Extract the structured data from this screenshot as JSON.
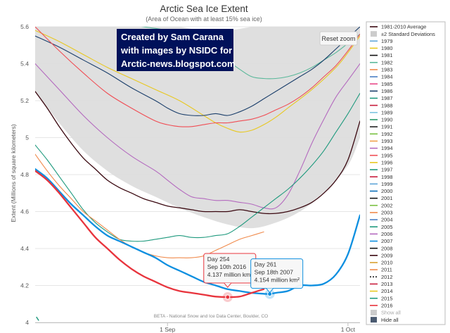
{
  "chart_data": {
    "type": "line",
    "title": "Arctic Sea Ice Extent",
    "subtitle": "(Area of Ocean with at least 15% sea ice)",
    "ylabel": "Extent (Millions of square kilometers)",
    "xlabel": "",
    "xlim": [
      222,
      276
    ],
    "ylim": [
      4.0,
      5.6
    ],
    "y_ticks": [
      4,
      4.2,
      4.4,
      4.6,
      4.8,
      5,
      5.2,
      5.4,
      5.6
    ],
    "x_ticks": [
      {
        "day": 244,
        "label": "1 Sep"
      },
      {
        "day": 274,
        "label": "1 Oct"
      }
    ],
    "grid": true,
    "band": {
      "name": "±2 Standard Deviations",
      "x": [
        222,
        226,
        230,
        234,
        238,
        242,
        246,
        250,
        254,
        258,
        262,
        266,
        270,
        274,
        276
      ],
      "upper": [
        5.72,
        5.7,
        5.68,
        5.66,
        5.64,
        5.62,
        5.6,
        5.58,
        5.58,
        5.6,
        5.62,
        5.64,
        5.66,
        5.68,
        5.7
      ],
      "lower": [
        5.25,
        5.08,
        4.93,
        4.82,
        4.74,
        4.68,
        4.62,
        4.57,
        4.53,
        4.51,
        4.54,
        4.6,
        4.7,
        4.85,
        5.0
      ]
    },
    "series": [
      {
        "name": "1981-2010 Average",
        "color": "#3a0810",
        "width": 1.3,
        "x": [
          222,
          224,
          226,
          228,
          230,
          232,
          234,
          236,
          238,
          240,
          242,
          244,
          246,
          248,
          250,
          252,
          254,
          256,
          258,
          260,
          262,
          264,
          266,
          268,
          270,
          272,
          274,
          276
        ],
        "y": [
          5.25,
          5.16,
          5.06,
          4.97,
          4.89,
          4.83,
          4.77,
          4.73,
          4.7,
          4.67,
          4.65,
          4.63,
          4.62,
          4.61,
          4.6,
          4.6,
          4.6,
          4.61,
          4.6,
          4.59,
          4.59,
          4.6,
          4.62,
          4.65,
          4.7,
          4.77,
          4.88,
          5.09
        ]
      },
      {
        "name": "1980",
        "color": "#e8c820",
        "width": 1.1,
        "x": [
          222,
          226,
          230,
          234,
          238,
          242,
          246,
          250,
          252,
          254,
          256,
          258,
          260,
          262,
          264,
          268,
          272,
          274,
          276
        ],
        "y": [
          5.58,
          5.52,
          5.45,
          5.38,
          5.32,
          5.26,
          5.2,
          5.12,
          5.08,
          5.05,
          5.03,
          5.04,
          5.07,
          5.11,
          5.16,
          5.26,
          5.38,
          5.46,
          5.55
        ]
      },
      {
        "name": "1982",
        "color": "#5ab89a",
        "width": 1.1,
        "x": [
          236,
          240,
          244,
          248,
          252,
          256,
          258,
          260,
          262,
          264,
          266,
          268,
          270,
          272,
          274,
          276
        ],
        "y": [
          5.62,
          5.6,
          5.58,
          5.54,
          5.46,
          5.37,
          5.33,
          5.32,
          5.32,
          5.33,
          5.35,
          5.38,
          5.42,
          5.46,
          5.51,
          5.56
        ]
      },
      {
        "name": "1986",
        "color": "#1b3f6b",
        "width": 1.1,
        "x": [
          222,
          226,
          230,
          234,
          238,
          242,
          244,
          246,
          248,
          250,
          252,
          254,
          256,
          258,
          260,
          262,
          264,
          266,
          268,
          270,
          272,
          274,
          276
        ],
        "y": [
          5.55,
          5.49,
          5.42,
          5.35,
          5.27,
          5.2,
          5.16,
          5.13,
          5.12,
          5.12,
          5.13,
          5.12,
          5.14,
          5.17,
          5.21,
          5.25,
          5.29,
          5.33,
          5.37,
          5.42,
          5.48,
          5.54,
          5.6
        ]
      },
      {
        "name": "1995",
        "color": "#f04e55",
        "width": 1.1,
        "x": [
          222,
          226,
          230,
          234,
          238,
          242,
          244,
          246,
          248,
          250,
          252,
          254,
          256,
          258,
          260,
          262,
          264,
          266,
          268,
          270,
          272,
          274,
          276
        ],
        "y": [
          5.6,
          5.47,
          5.35,
          5.24,
          5.16,
          5.09,
          5.07,
          5.06,
          5.06,
          5.07,
          5.08,
          5.08,
          5.09,
          5.1,
          5.12,
          5.15,
          5.18,
          5.22,
          5.27,
          5.33,
          5.39,
          5.47,
          5.56
        ]
      },
      {
        "name": "1994",
        "color": "#b46abf",
        "width": 1.1,
        "x": [
          222,
          226,
          230,
          234,
          238,
          242,
          244,
          246,
          248,
          250,
          252,
          254,
          256,
          258,
          260,
          262,
          264,
          266,
          268,
          270,
          272,
          274,
          276
        ],
        "y": [
          5.4,
          5.26,
          5.12,
          5.0,
          4.9,
          4.82,
          4.77,
          4.72,
          4.68,
          4.67,
          4.66,
          4.66,
          4.65,
          4.64,
          4.62,
          4.62,
          4.69,
          4.82,
          4.97,
          5.1,
          5.22,
          5.31,
          5.4
        ]
      },
      {
        "name": "2015",
        "color": "#1f9a7e",
        "width": 1.1,
        "x": [
          222,
          224,
          226,
          228,
          230,
          232,
          234,
          236,
          238,
          240,
          242,
          244,
          246,
          248,
          250,
          252,
          254,
          256,
          258,
          260,
          262,
          264,
          266,
          268,
          270,
          272,
          274,
          276
        ],
        "y": [
          4.96,
          4.88,
          4.79,
          4.7,
          4.61,
          4.54,
          4.49,
          4.45,
          4.44,
          4.44,
          4.45,
          4.46,
          4.47,
          4.46,
          4.46,
          4.47,
          4.48,
          4.52,
          4.57,
          4.62,
          4.67,
          4.72,
          4.78,
          4.85,
          4.93,
          5.03,
          5.13,
          5.24
        ]
      },
      {
        "name": "2011",
        "color": "#f08a4b",
        "width": 1.1,
        "x": [
          222,
          224,
          226,
          228,
          230,
          232,
          234,
          236,
          238,
          240,
          242,
          244,
          246,
          248,
          250,
          252,
          254,
          256,
          258,
          260
        ],
        "y": [
          4.91,
          4.82,
          4.74,
          4.67,
          4.6,
          4.55,
          4.5,
          4.45,
          4.41,
          4.38,
          4.36,
          4.35,
          4.35,
          4.35,
          4.36,
          4.39,
          4.42,
          4.45,
          4.47,
          4.49
        ]
      },
      {
        "name": "2007",
        "color": "#0d8fe0",
        "width": 2.3,
        "x": [
          222,
          224,
          226,
          228,
          230,
          232,
          234,
          236,
          238,
          240,
          242,
          244,
          246,
          248,
          250,
          252,
          254,
          256,
          258,
          260,
          261,
          262,
          264,
          266,
          268,
          270,
          272,
          274,
          276
        ],
        "y": [
          4.83,
          4.78,
          4.71,
          4.64,
          4.58,
          4.52,
          4.47,
          4.44,
          4.41,
          4.38,
          4.35,
          4.31,
          4.28,
          4.25,
          4.22,
          4.2,
          4.18,
          4.17,
          4.16,
          4.155,
          4.154,
          4.16,
          4.17,
          4.2,
          4.2,
          4.21,
          4.26,
          4.37,
          4.58
        ]
      },
      {
        "name": "2016",
        "color": "#e8343d",
        "width": 2.3,
        "x": [
          222,
          224,
          226,
          228,
          230,
          232,
          234,
          236,
          238,
          240,
          242,
          244,
          246,
          248,
          250,
          252,
          254,
          256,
          258,
          260
        ],
        "y": [
          4.82,
          4.77,
          4.7,
          4.62,
          4.54,
          4.46,
          4.4,
          4.34,
          4.29,
          4.25,
          4.22,
          4.19,
          4.17,
          4.16,
          4.15,
          4.14,
          4.137,
          4.14,
          4.16,
          4.18
        ]
      }
    ],
    "tooltips": [
      {
        "day": 254,
        "value": 4.137,
        "color": "#e8343d",
        "lines": [
          "Day 254",
          "Sep 10th 2016",
          "4.137 million km²"
        ]
      },
      {
        "day": 261,
        "value": 4.154,
        "color": "#0d8fe0",
        "lines": [
          "Day 261",
          "Sep 18th 2007",
          "4.154 million km²"
        ]
      }
    ],
    "legend": {
      "placement": "right",
      "items": [
        {
          "label": "1981-2010 Average",
          "color": "#3a0810",
          "style": "line"
        },
        {
          "label": "±2 Standard Deviations",
          "color": "#cccccc",
          "style": "box"
        },
        {
          "label": "1979",
          "color": "#5fa6d8",
          "style": "line"
        },
        {
          "label": "1980",
          "color": "#e8c820",
          "style": "line"
        },
        {
          "label": "1981",
          "color": "#111111",
          "style": "line"
        },
        {
          "label": "1982",
          "color": "#5ab89a",
          "style": "line"
        },
        {
          "label": "1983",
          "color": "#f08a4b",
          "style": "line"
        },
        {
          "label": "1984",
          "color": "#4a7fc4",
          "style": "line"
        },
        {
          "label": "1985",
          "color": "#e84a8a",
          "style": "line"
        },
        {
          "label": "1986",
          "color": "#1b3f6b",
          "style": "line"
        },
        {
          "label": "1987",
          "color": "#1f9a7e",
          "style": "line"
        },
        {
          "label": "1988",
          "color": "#c81d3d",
          "style": "line"
        },
        {
          "label": "1989",
          "color": "#7fc6e0",
          "style": "line"
        },
        {
          "label": "1990",
          "color": "#2a9a6a",
          "style": "line"
        },
        {
          "label": "1991",
          "color": "#222222",
          "style": "line"
        },
        {
          "label": "1992",
          "color": "#7ac142",
          "style": "line"
        },
        {
          "label": "1993",
          "color": "#f0a04b",
          "style": "line"
        },
        {
          "label": "1994",
          "color": "#b46abf",
          "style": "line"
        },
        {
          "label": "1995",
          "color": "#f04e55",
          "style": "line"
        },
        {
          "label": "1996",
          "color": "#e8c820",
          "style": "line"
        },
        {
          "label": "1997",
          "color": "#1f9a7e",
          "style": "line"
        },
        {
          "label": "1998",
          "color": "#c81d3d",
          "style": "line"
        },
        {
          "label": "1999",
          "color": "#5fa6d8",
          "style": "line"
        },
        {
          "label": "2000",
          "color": "#0d6fb8",
          "style": "line"
        },
        {
          "label": "2001",
          "color": "#111111",
          "style": "line"
        },
        {
          "label": "2002",
          "color": "#7ac142",
          "style": "line"
        },
        {
          "label": "2003",
          "color": "#f08a4b",
          "style": "line"
        },
        {
          "label": "2004",
          "color": "#4a7fc4",
          "style": "line"
        },
        {
          "label": "2005",
          "color": "#1f9a7e",
          "style": "line"
        },
        {
          "label": "2006",
          "color": "#b46abf",
          "style": "line"
        },
        {
          "label": "2007",
          "color": "#0d8fe0",
          "style": "line"
        },
        {
          "label": "2008",
          "color": "#111111",
          "style": "line"
        },
        {
          "label": "2009",
          "color": "#3a0810",
          "style": "line"
        },
        {
          "label": "2010",
          "color": "#d8a030",
          "style": "line"
        },
        {
          "label": "2011",
          "color": "#f08a4b",
          "style": "line"
        },
        {
          "label": "2012",
          "color": "#111111",
          "style": "dash"
        },
        {
          "label": "2013",
          "color": "#c81d3d",
          "style": "line"
        },
        {
          "label": "2014",
          "color": "#e8c820",
          "style": "line"
        },
        {
          "label": "2015",
          "color": "#1f9a7e",
          "style": "line"
        },
        {
          "label": "2016",
          "color": "#e8343d",
          "style": "line"
        },
        {
          "label": "Show all",
          "color": "#cccccc",
          "style": "box",
          "muted": true
        },
        {
          "label": "Hide all",
          "color": "#4a5a70",
          "style": "box"
        }
      ]
    },
    "credit": "BETA - National Snow and Ice Data Center, Boulder, CO"
  },
  "overlay": {
    "lines": [
      "Created by Sam Carana",
      "with images by NSIDC for",
      "Arctic-news.blogspot.com"
    ],
    "background": "#00115a"
  },
  "controls": {
    "reset_zoom": "Reset zoom"
  }
}
